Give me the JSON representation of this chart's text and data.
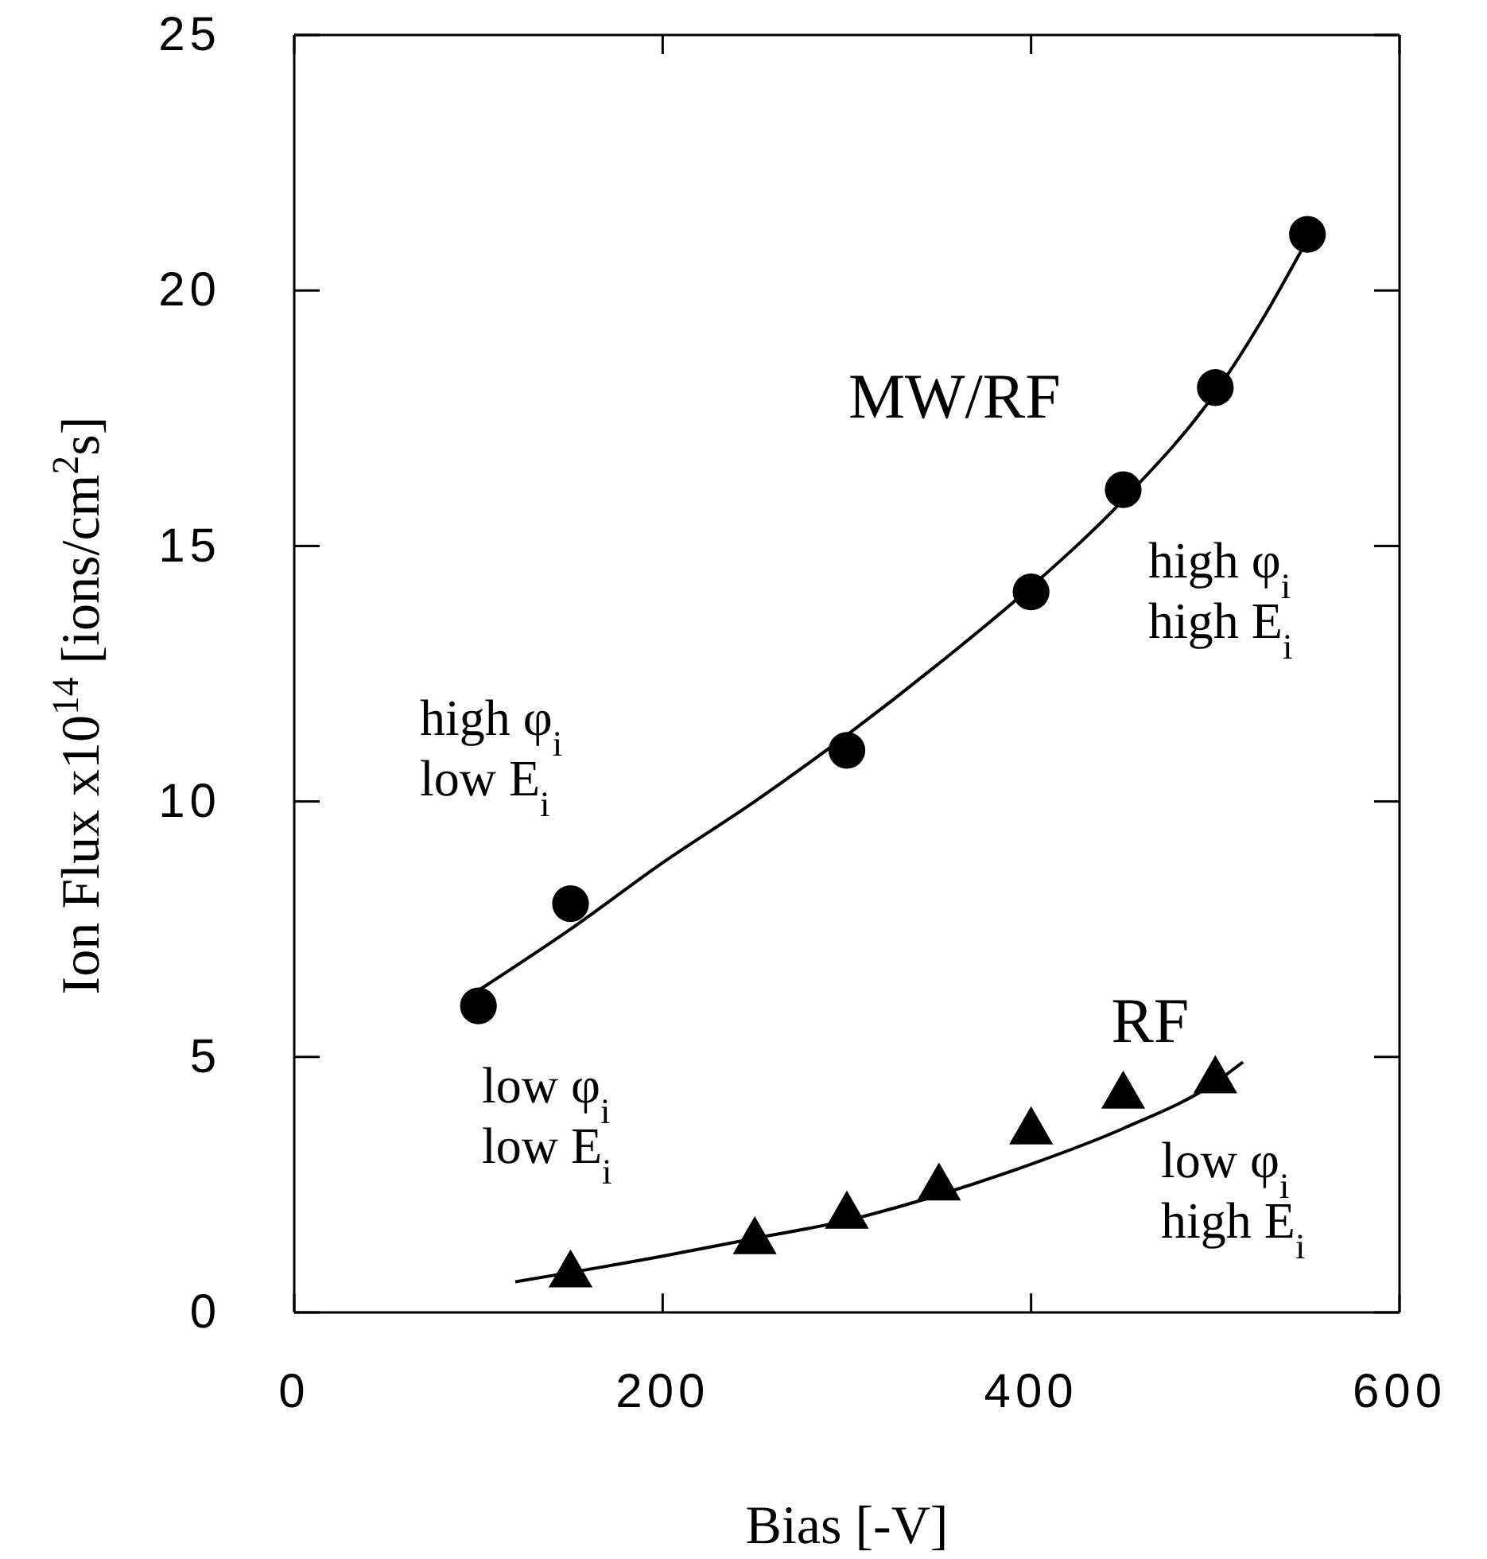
{
  "chart_data": {
    "type": "scatter",
    "xlabel": "Bias [-V]",
    "ylabel": "Ion Flux x10$^{14}$ [ions/cm$^{2}$s]",
    "xlim": [
      0,
      600
    ],
    "ylim": [
      0,
      25
    ],
    "xticks": [
      0,
      200,
      400,
      600
    ],
    "yticks": [
      0,
      5,
      10,
      15,
      20,
      25
    ],
    "series": [
      {
        "name": "MW/RF",
        "marker": "circle",
        "color": "#000000",
        "x": [
          100,
          150,
          300,
          400,
          450,
          500,
          550
        ],
        "values": [
          6,
          8,
          11,
          14.1,
          16.1,
          18.1,
          21.1
        ]
      },
      {
        "name": "RF",
        "marker": "triangle",
        "color": "#000000",
        "x": [
          150,
          250,
          300,
          350,
          400,
          450,
          500
        ],
        "values": [
          0.8,
          1.45,
          1.95,
          2.5,
          3.6,
          4.3,
          4.6
        ]
      },
      {
        "type": "line",
        "marker": "none",
        "color": "#000000",
        "x": [
          100,
          150,
          200,
          250,
          300,
          350,
          400,
          450,
          500,
          525,
          550
        ],
        "values": [
          6.3,
          7.5,
          8.8,
          10,
          11.3,
          12.7,
          14.2,
          15.9,
          18,
          19.4,
          21
        ]
      },
      {
        "type": "line",
        "marker": "none",
        "color": "#000000",
        "x": [
          120,
          200,
          250,
          300,
          350,
          400,
          450,
          500,
          515
        ],
        "values": [
          0.6,
          1.1,
          1.45,
          1.8,
          2.3,
          2.9,
          3.6,
          4.5,
          4.9
        ]
      }
    ],
    "annotations": [
      "high φ$_{i}$\nlow E$_{i}$",
      "high φ$_{i}$\nhigh E$_{i}$",
      "low φ$_{i}$\nlow E$_{i}$",
      "low φ$_{i}$\nhigh E$_{i}$"
    ]
  }
}
